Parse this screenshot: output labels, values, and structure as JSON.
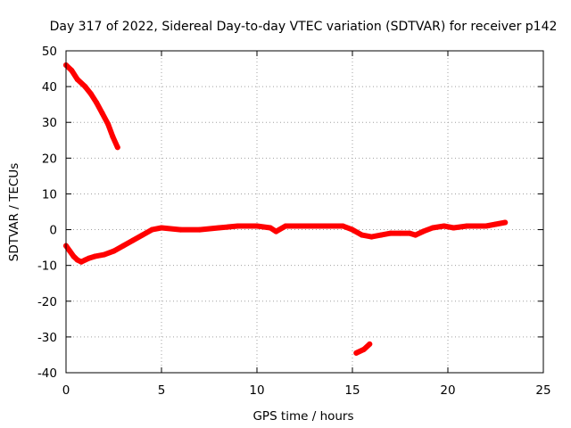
{
  "chart_data": {
    "type": "scatter",
    "title": "Day 317 of 2022, Sidereal Day-to-day VTEC variation (SDTVAR) for receiver p142",
    "xlabel": "GPS time / hours",
    "ylabel": "SDTVAR / TECUs",
    "xlim": [
      0,
      25
    ],
    "ylim": [
      -40,
      50
    ],
    "xticks": [
      0,
      5,
      10,
      15,
      20,
      25
    ],
    "yticks": [
      -40,
      -30,
      -20,
      -10,
      0,
      10,
      20,
      30,
      40,
      50
    ],
    "grid": true,
    "legend": "none",
    "colors": {
      "series": "#ff0000",
      "grid": "#a0a0a0",
      "axes": "#000000"
    },
    "series": [
      {
        "name": "segment-1",
        "points": [
          [
            0.0,
            46.0
          ],
          [
            0.3,
            44.5
          ],
          [
            0.6,
            42.0
          ],
          [
            1.0,
            40.0
          ],
          [
            1.3,
            38.0
          ],
          [
            1.6,
            35.5
          ],
          [
            1.9,
            32.5
          ],
          [
            2.2,
            29.5
          ],
          [
            2.45,
            26.0
          ],
          [
            2.7,
            23.0
          ]
        ]
      },
      {
        "name": "segment-2",
        "points": [
          [
            0.0,
            -4.5
          ],
          [
            0.2,
            -6.0
          ],
          [
            0.4,
            -7.5
          ],
          [
            0.6,
            -8.5
          ],
          [
            0.8,
            -9.0
          ],
          [
            1.0,
            -8.5
          ],
          [
            1.2,
            -8.0
          ],
          [
            1.5,
            -7.5
          ],
          [
            2.0,
            -7.0
          ],
          [
            2.5,
            -6.0
          ],
          [
            3.0,
            -4.5
          ],
          [
            3.5,
            -3.0
          ],
          [
            4.0,
            -1.5
          ],
          [
            4.5,
            0.0
          ],
          [
            5.0,
            0.5
          ],
          [
            6.0,
            0.0
          ],
          [
            7.0,
            0.0
          ],
          [
            8.0,
            0.5
          ],
          [
            9.0,
            1.0
          ],
          [
            10.0,
            1.0
          ],
          [
            10.7,
            0.5
          ],
          [
            11.0,
            -0.5
          ],
          [
            11.5,
            1.0
          ],
          [
            12.5,
            1.0
          ],
          [
            13.5,
            1.0
          ],
          [
            14.5,
            1.0
          ],
          [
            15.0,
            0.0
          ],
          [
            15.5,
            -1.5
          ],
          [
            16.0,
            -2.0
          ],
          [
            16.5,
            -1.5
          ],
          [
            17.0,
            -1.0
          ],
          [
            17.5,
            -1.0
          ],
          [
            18.0,
            -1.0
          ],
          [
            18.3,
            -1.5
          ],
          [
            18.7,
            -0.5
          ],
          [
            19.2,
            0.5
          ],
          [
            19.8,
            1.0
          ],
          [
            20.3,
            0.5
          ],
          [
            21.0,
            1.0
          ],
          [
            22.0,
            1.0
          ],
          [
            22.5,
            1.5
          ],
          [
            23.0,
            2.0
          ]
        ]
      },
      {
        "name": "segment-3",
        "points": [
          [
            15.2,
            -34.5
          ],
          [
            15.6,
            -33.5
          ],
          [
            15.9,
            -32.0
          ]
        ]
      }
    ]
  }
}
